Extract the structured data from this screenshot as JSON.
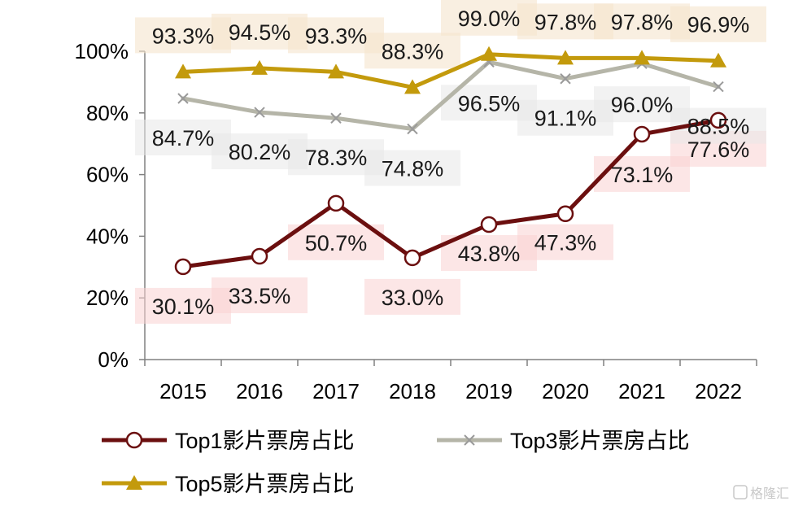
{
  "chart_data": {
    "type": "line",
    "categories": [
      "2015",
      "2016",
      "2017",
      "2018",
      "2019",
      "2020",
      "2021",
      "2022"
    ],
    "ylim": [
      0,
      100
    ],
    "yticks": [
      0,
      20,
      40,
      60,
      80,
      100
    ],
    "ytick_labels": [
      "0%",
      "20%",
      "40%",
      "60%",
      "80%",
      "100%"
    ],
    "grid": false,
    "legend_position": "bottom",
    "series": [
      {
        "name": "Top1影片票房占比",
        "color": "#6b0f0f",
        "marker": "open-circle",
        "values": [
          30.1,
          33.5,
          50.7,
          33.0,
          43.8,
          47.3,
          73.1,
          77.6
        ],
        "labels": [
          "30.1%",
          "33.5%",
          "50.7%",
          "33.0%",
          "43.8%",
          "47.3%",
          "73.1%",
          "77.6%"
        ]
      },
      {
        "name": "Top3影片票房占比",
        "color": "#b5b5a8",
        "marker": "x",
        "values": [
          84.7,
          80.2,
          78.3,
          74.8,
          96.5,
          91.1,
          96.0,
          88.5
        ],
        "labels": [
          "84.7%",
          "80.2%",
          "78.3%",
          "74.8%",
          "96.5%",
          "91.1%",
          "96.0%",
          "88.5%"
        ]
      },
      {
        "name": "Top5影片票房占比",
        "color": "#c39a0c",
        "marker": "triangle",
        "values": [
          93.3,
          94.5,
          93.3,
          88.3,
          99.0,
          97.8,
          97.8,
          96.9
        ],
        "labels": [
          "93.3%",
          "94.5%",
          "93.3%",
          "88.3%",
          "99.0%",
          "97.8%",
          "97.8%",
          "96.9%"
        ]
      }
    ]
  },
  "watermark": {
    "text": "格隆汇"
  }
}
